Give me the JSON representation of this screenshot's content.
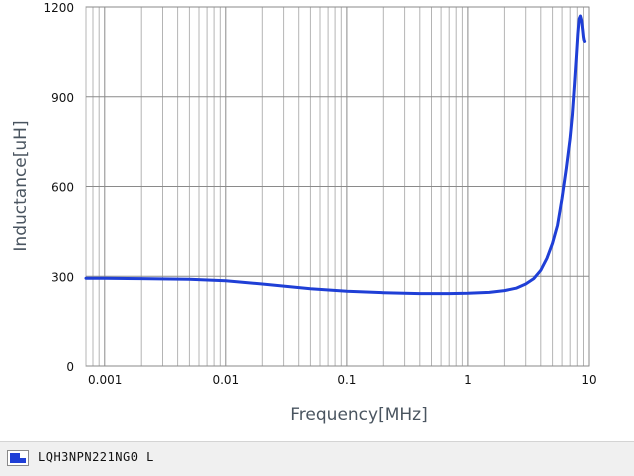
{
  "chart_data": {
    "type": "line",
    "xlabel": "Frequency[MHz]",
    "ylabel": "Inductance[uH]",
    "x_scale": "log",
    "xlim": [
      0.0007,
      10
    ],
    "ylim": [
      0,
      1200
    ],
    "x_ticks": [
      {
        "value": 0.001,
        "label": "0.001"
      },
      {
        "value": 0.01,
        "label": "0.01"
      },
      {
        "value": 0.1,
        "label": "0.1"
      },
      {
        "value": 1,
        "label": "1"
      },
      {
        "value": 10,
        "label": "10"
      }
    ],
    "y_ticks": [
      {
        "value": 0,
        "label": "0"
      },
      {
        "value": 300,
        "label": "300"
      },
      {
        "value": 600,
        "label": "600"
      },
      {
        "value": 900,
        "label": "900"
      },
      {
        "value": 1200,
        "label": "1200"
      }
    ],
    "grid": true,
    "legend_position": "bottom",
    "series": [
      {
        "name": "LQH3NPN221NG0 L",
        "color": "#1f3fd6",
        "x": [
          0.0007,
          0.001,
          0.002,
          0.005,
          0.01,
          0.02,
          0.05,
          0.1,
          0.2,
          0.4,
          0.7,
          1,
          1.5,
          2,
          2.5,
          3,
          3.5,
          4,
          4.5,
          5,
          5.5,
          6,
          6.5,
          7,
          7.3,
          7.6,
          7.9,
          8.1,
          8.3,
          8.5,
          8.7,
          8.9,
          9.0,
          9.1,
          9.2
        ],
        "y": [
          293,
          293,
          292,
          290,
          285,
          274,
          258,
          250,
          245,
          242,
          242,
          243,
          246,
          252,
          260,
          274,
          292,
          320,
          360,
          410,
          470,
          560,
          660,
          760,
          840,
          940,
          1040,
          1110,
          1160,
          1170,
          1155,
          1120,
          1100,
          1090,
          1085
        ]
      }
    ]
  },
  "legend": {
    "label": "LQH3NPN221NG0  L",
    "swatch_color": "#1f3fd6"
  }
}
